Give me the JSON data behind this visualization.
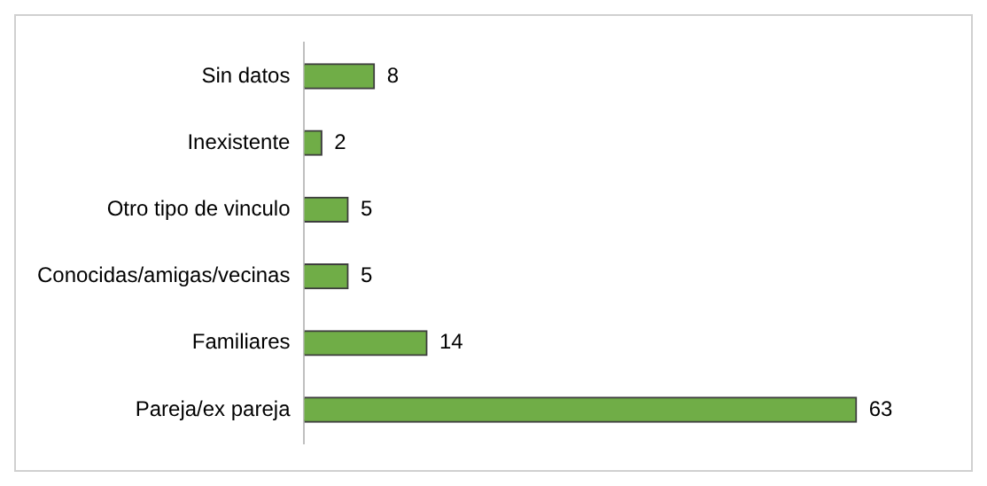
{
  "chart_data": {
    "type": "bar",
    "orientation": "horizontal",
    "categories": [
      "Sin datos",
      "Inexistente",
      "Otro tipo de vinculo",
      "Conocidas/amigas/vecinas",
      "Familiares",
      "Pareja/ex pareja"
    ],
    "values": [
      8,
      2,
      5,
      5,
      14,
      63
    ],
    "color": "#70ad47",
    "data_labels": true,
    "grid": false,
    "legend": false
  }
}
